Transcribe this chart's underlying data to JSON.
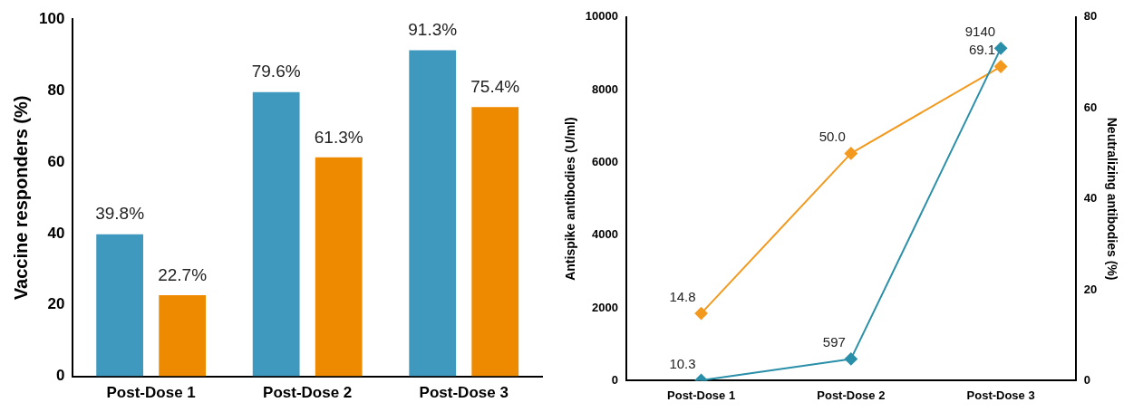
{
  "chart_data": [
    {
      "type": "bar",
      "categories": [
        "Post-Dose 1",
        "Post-Dose 2",
        "Post-Dose 3"
      ],
      "ylabel": "Vaccine responders (%)",
      "ylim": [
        0,
        100
      ],
      "yticks": [
        0,
        20,
        40,
        60,
        80,
        100
      ],
      "grid": false,
      "legend": false,
      "series": [
        {
          "color": "#3f98bd",
          "values": [
            39.8,
            79.6,
            91.3
          ],
          "value_labels": [
            "39.8%",
            "79.6%",
            "91.3%"
          ]
        },
        {
          "color": "#ee8a00",
          "values": [
            22.7,
            61.3,
            75.4
          ],
          "value_labels": [
            "22.7%",
            "61.3%",
            "75.4%"
          ]
        }
      ]
    },
    {
      "type": "line",
      "categories": [
        "Post-Dose 1",
        "Post-Dose 2",
        "Post-Dose 3"
      ],
      "ylabel": "Antispike antibodies (U/ml)",
      "y2label": "Neutralizing antibodies (%)",
      "ylim": [
        0,
        10000
      ],
      "yticks": [
        0,
        2000,
        4000,
        6000,
        8000,
        10000
      ],
      "y2lim": [
        0,
        80
      ],
      "y2ticks": [
        0,
        20,
        40,
        60,
        80
      ],
      "grid": false,
      "legend": false,
      "marker": "diamond",
      "series": [
        {
          "color": "#2a8fa8",
          "axis": "y",
          "values": [
            10.3,
            597,
            9140
          ],
          "value_labels": [
            "10.3",
            "597",
            "9140"
          ]
        },
        {
          "color": "#f39a1e",
          "axis": "y2",
          "values": [
            14.8,
            50.0,
            69.1
          ],
          "value_labels": [
            "14.8",
            "50.0",
            "69.1"
          ]
        }
      ]
    }
  ]
}
